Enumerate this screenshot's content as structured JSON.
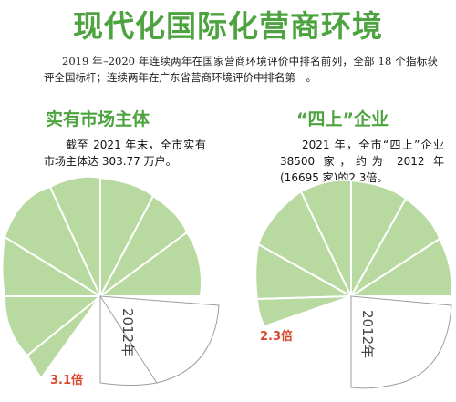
{
  "title": "现代化国际化营商环境",
  "intro": "2019 年–2020 年连续两年在国家营商环境评价中排名前列，全部 18 个指标获评全国标杆；连续两年在广东省营商环境评价中排名第一。",
  "sections": [
    {
      "title": "实有市场主体",
      "desc": "截至 2021 年末，全市实有市场主体达 303.77 万户。",
      "year_label": "2012年",
      "multiple_label": "3.1倍",
      "multiple": 3.1
    },
    {
      "title": "“四上”企业",
      "desc": "2021 年，全市“四上”企业 38500 家，约为 2012 年(16695 家)的2.3倍。",
      "year_label": "2012年",
      "multiple_label": "2.3倍",
      "multiple": 2.3
    }
  ],
  "colors": {
    "title_green": "#4da33f",
    "petal_fill": "#b8d9a0",
    "accent_red": "#d9482b"
  }
}
